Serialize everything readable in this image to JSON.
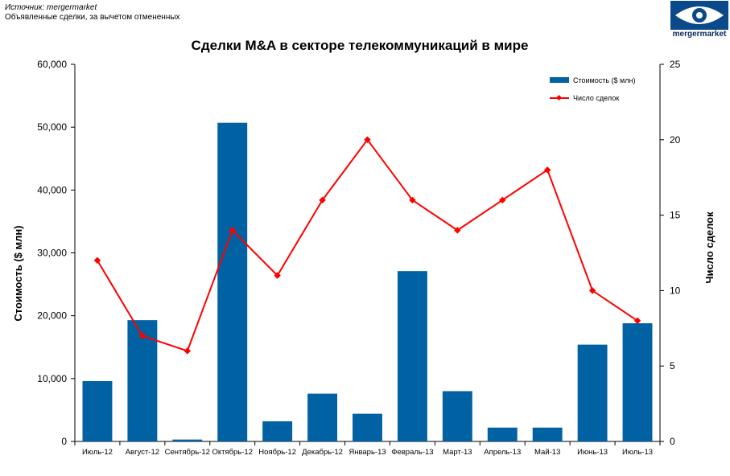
{
  "source": {
    "line1": "Источник: mergermarket",
    "line2": "Объявленные сделки, за вычетом отмененных"
  },
  "logo": {
    "text": "mergermarket",
    "color": "#0a4a8a"
  },
  "chart_data": {
    "type": "bar+line",
    "title": "Сделки M&A в секторе телекоммуникаций в мире",
    "ylabel_left": "Стоимость  ($ млн)",
    "ylabel_right": "Число сделок",
    "ylim_left": [
      0,
      60000
    ],
    "ylim_right": [
      0,
      25
    ],
    "yticks_left": [
      "0",
      "10,000",
      "20,000",
      "30,000",
      "40,000",
      "50,000",
      "60,000"
    ],
    "yticks_right": [
      "0",
      "5",
      "10",
      "15",
      "20",
      "25"
    ],
    "categories": [
      "Июль-12",
      "Август-12",
      "Сентябрь-12",
      "Октябрь-12",
      "Ноябрь-12",
      "Декабрь-12",
      "Январь-13",
      "Февраль-13",
      "Март-13",
      "Апрель-13",
      "Май-13",
      "Июнь-13",
      "Июль-13"
    ],
    "series": [
      {
        "name": "Стоимость ($ млн)",
        "type": "bar",
        "axis": "left",
        "color": "#0062a3",
        "values": [
          9600,
          19300,
          300,
          50700,
          3200,
          7600,
          4400,
          27100,
          8000,
          2200,
          2200,
          15400,
          18800
        ]
      },
      {
        "name": "Число сделок",
        "type": "line",
        "axis": "right",
        "color": "#ff0000",
        "values": [
          12,
          7,
          6,
          14,
          11,
          16,
          20,
          16,
          14,
          16,
          18,
          10,
          8
        ]
      }
    ],
    "legend_position": "top-right",
    "grid": false
  }
}
